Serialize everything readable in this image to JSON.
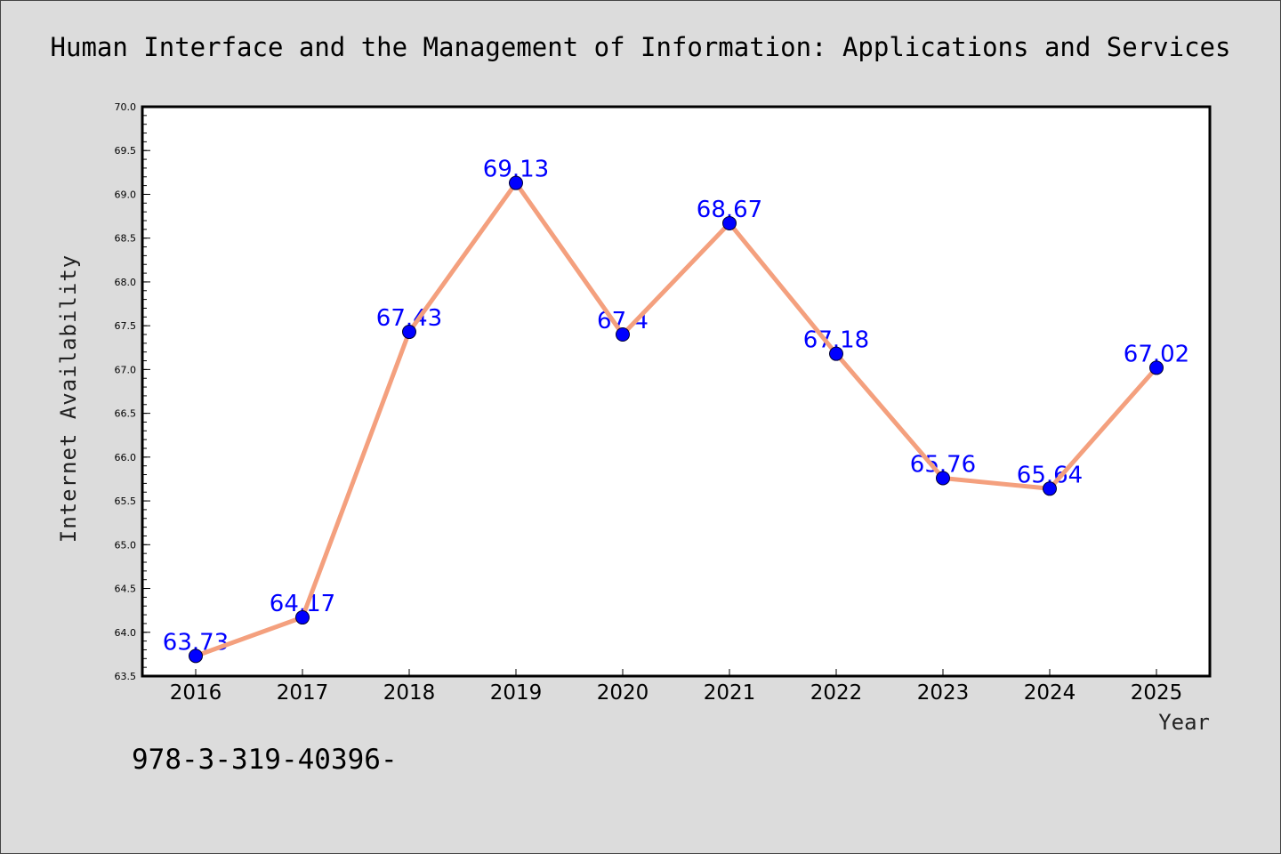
{
  "chart_data": {
    "type": "line",
    "title": "Human Interface and the Management of Information: Applications and Services",
    "xlabel": "Year",
    "ylabel": "Internet Availability",
    "categories": [
      "2016",
      "2017",
      "2018",
      "2019",
      "2020",
      "2021",
      "2022",
      "2023",
      "2024",
      "2025"
    ],
    "series": [
      {
        "values": [
          63.73,
          64.17,
          67.43,
          69.13,
          67.4,
          68.67,
          67.18,
          65.76,
          65.64,
          67.02
        ],
        "labels": [
          "63.73",
          "64.17",
          "67.43",
          "69.13",
          "67.4",
          "68.67",
          "67.18",
          "65.76",
          "65.64",
          "67.02"
        ]
      }
    ],
    "ylim": [
      63.5,
      70.0
    ],
    "yticks": [
      "63.5",
      "64.0",
      "64.5",
      "65.0",
      "65.5",
      "66.0",
      "66.5",
      "67.0",
      "67.5",
      "68.0",
      "68.5",
      "69.0",
      "69.5",
      "70.0"
    ],
    "grid": false,
    "colors": {
      "line": "#f4a07e",
      "marker": "#0000ff",
      "data_label": "#0000ff",
      "background": "#dcdcdc",
      "plot_background": "#ffffff"
    }
  },
  "footer": {
    "text": "978-3-319-40396-"
  }
}
